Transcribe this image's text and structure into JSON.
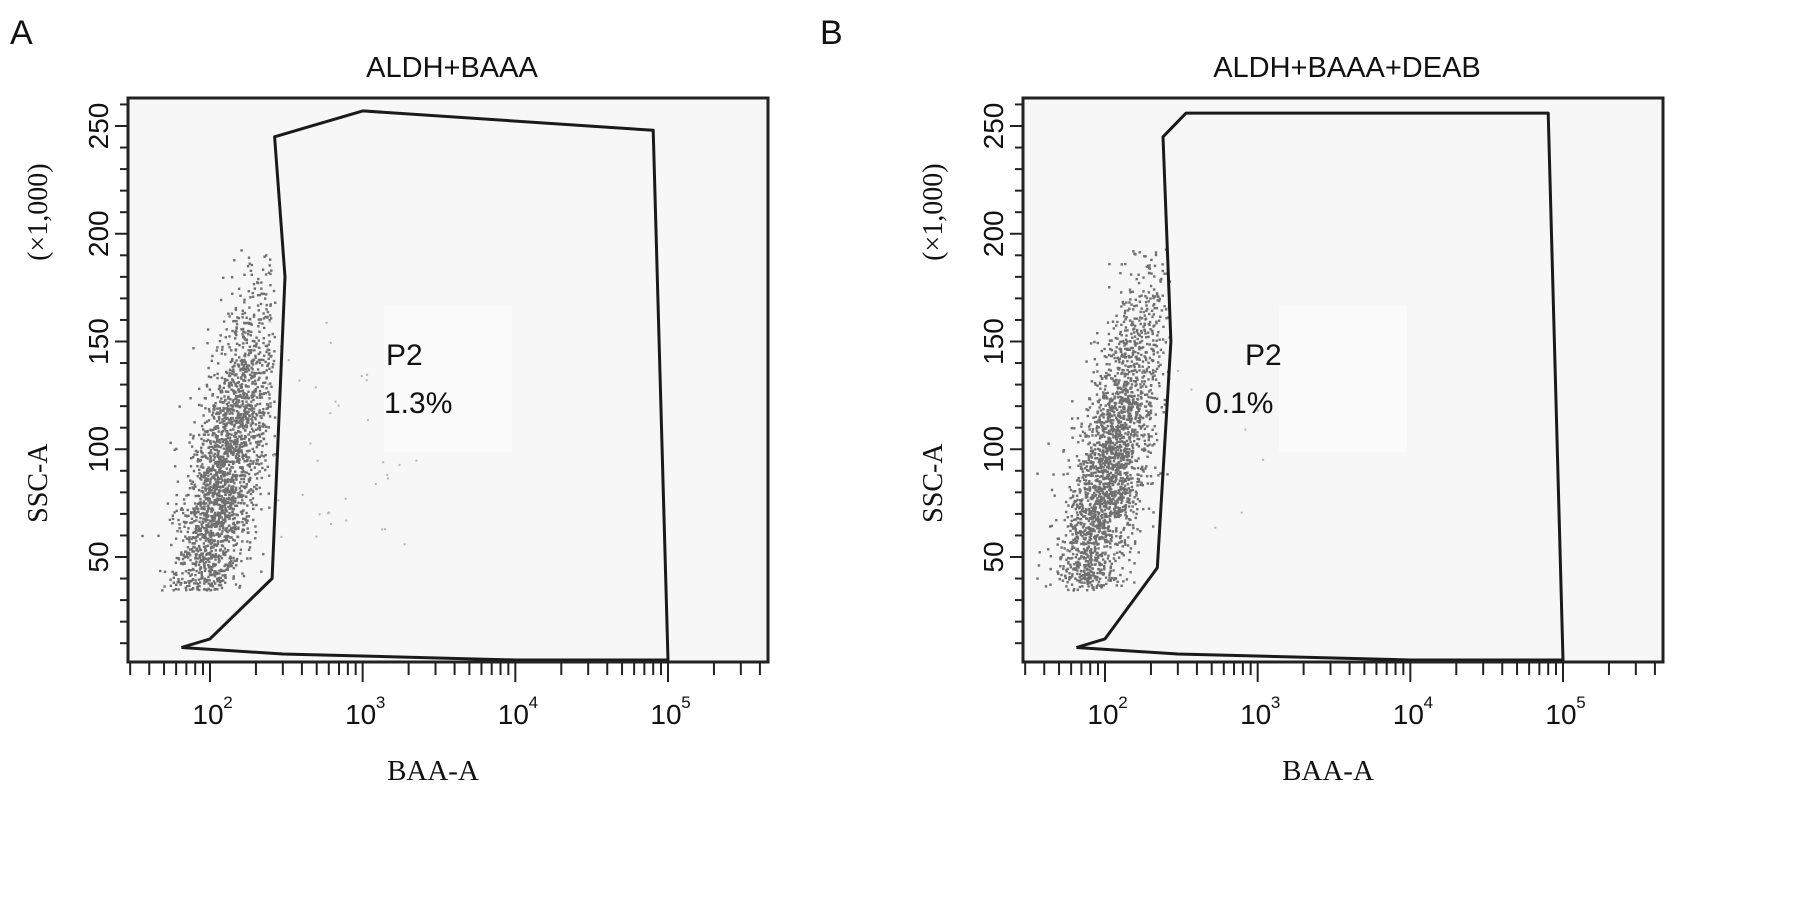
{
  "colors": {
    "event": "#6f6f6f",
    "frame": "#222222",
    "gate": "#1a1a1a",
    "plot_bg": "#f7f7f7"
  },
  "chart_data": [
    {
      "type": "scatter",
      "panel_label": "A",
      "title": "ALDH+BAAA",
      "xlabel": "BAA-A",
      "ylabel": "SSC-A",
      "ylabel_multiplier": "(×1,000)",
      "x_scale": "log",
      "xlim": [
        10,
        100000
      ],
      "x_ticks": [
        100,
        1000,
        10000,
        100000
      ],
      "x_tick_labels": [
        "10",
        "10",
        "10",
        "10"
      ],
      "x_tick_exponents": [
        "2",
        "3",
        "4",
        "5"
      ],
      "ylim": [
        0,
        265
      ],
      "y_ticks": [
        50,
        100,
        150,
        200,
        250
      ],
      "y_tick_labels": [
        "50",
        "100",
        "150",
        "200",
        "250"
      ],
      "population_center": {
        "x": 120,
        "y": 85
      },
      "gate": {
        "name": "P2",
        "percent": "1.3%",
        "vertices": [
          [
            65,
            8
          ],
          [
            100,
            12
          ],
          [
            255,
            40
          ],
          [
            310,
            180
          ],
          [
            265,
            245
          ],
          [
            1000,
            257
          ],
          [
            80000,
            248
          ],
          [
            100000,
            0
          ],
          [
            10000,
            0
          ],
          [
            300,
            5
          ],
          [
            65,
            8
          ]
        ]
      }
    },
    {
      "type": "scatter",
      "panel_label": "B",
      "title": "ALDH+BAAA+DEAB",
      "xlabel": "BAA-A",
      "ylabel": "SSC-A",
      "ylabel_multiplier": "(×1,000)",
      "x_scale": "log",
      "xlim": [
        10,
        100000
      ],
      "x_ticks": [
        100,
        1000,
        10000,
        100000
      ],
      "x_tick_labels": [
        "10",
        "10",
        "10",
        "10"
      ],
      "x_tick_exponents": [
        "2",
        "3",
        "4",
        "5"
      ],
      "ylim": [
        0,
        265
      ],
      "y_ticks": [
        50,
        100,
        150,
        200,
        250
      ],
      "y_tick_labels": [
        "50",
        "100",
        "150",
        "200",
        "250"
      ],
      "population_center": {
        "x": 105,
        "y": 90
      },
      "gate": {
        "name": "P2",
        "percent": "0.1%",
        "vertices": [
          [
            65,
            8
          ],
          [
            100,
            12
          ],
          [
            220,
            45
          ],
          [
            270,
            150
          ],
          [
            240,
            245
          ],
          [
            340,
            256
          ],
          [
            80000,
            256
          ],
          [
            100000,
            0
          ],
          [
            10000,
            0
          ],
          [
            300,
            5
          ],
          [
            65,
            8
          ]
        ]
      }
    }
  ]
}
